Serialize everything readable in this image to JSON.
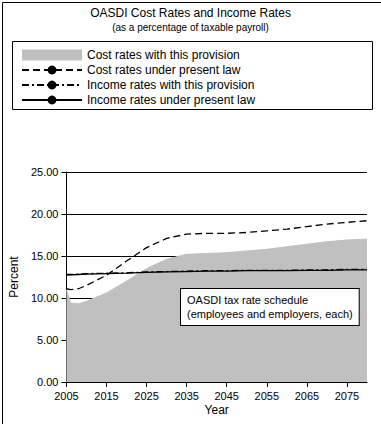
{
  "chart_data": {
    "type": "line",
    "title": "OASDI Cost Rates and Income Rates",
    "subtitle": "(as a percentage of taxable payroll)",
    "x_label": "Year",
    "y_label": "Percent",
    "annotation": [
      "OASDI tax rate schedule",
      "(employees and employers, each)"
    ],
    "x": [
      2005,
      2006,
      2008,
      2010,
      2015,
      2020,
      2025,
      2030,
      2035,
      2040,
      2045,
      2050,
      2055,
      2060,
      2065,
      2070,
      2075,
      2080
    ],
    "series": [
      {
        "name": "Cost rates with this provision",
        "type": "area",
        "color": "#c0c0c0",
        "line_style": "solid",
        "values": [
          11.0,
          9.4,
          9.3,
          9.6,
          10.6,
          12.0,
          13.5,
          14.6,
          15.2,
          15.3,
          15.4,
          15.6,
          15.8,
          16.1,
          16.4,
          16.7,
          16.9,
          17.0
        ]
      },
      {
        "name": "Cost rates under present law",
        "type": "line",
        "color": "#000000",
        "line_style": "dashed",
        "values": [
          11.1,
          11.0,
          11.1,
          11.5,
          12.7,
          14.4,
          16.0,
          17.1,
          17.6,
          17.7,
          17.7,
          17.8,
          18.0,
          18.2,
          18.5,
          18.8,
          19.0,
          19.2
        ]
      },
      {
        "name": "Income rates with this provision",
        "type": "line",
        "color": "#000000",
        "line_style": "dashdot",
        "values": [
          12.8,
          12.8,
          12.85,
          12.9,
          12.95,
          13.0,
          13.1,
          13.15,
          13.2,
          13.25,
          13.25,
          13.3,
          13.3,
          13.3,
          13.35,
          13.35,
          13.4,
          13.4
        ]
      },
      {
        "name": "Income rates under present law",
        "type": "line",
        "color": "#000000",
        "line_style": "solid",
        "values": [
          12.75,
          12.75,
          12.8,
          12.85,
          12.9,
          12.95,
          13.05,
          13.1,
          13.15,
          13.2,
          13.2,
          13.25,
          13.25,
          13.25,
          13.3,
          13.3,
          13.35,
          13.35
        ]
      }
    ],
    "xlim": [
      2005,
      2080
    ],
    "xticks": [
      2005,
      2015,
      2025,
      2035,
      2045,
      2055,
      2065,
      2075
    ],
    "ylim": [
      0,
      25
    ],
    "yticks": [
      {
        "value": 0,
        "label": "0.00"
      },
      {
        "value": 5,
        "label": "5.00"
      },
      {
        "value": 10,
        "label": "10.00"
      },
      {
        "value": 15,
        "label": "15.00"
      },
      {
        "value": 20,
        "label": "20.00"
      },
      {
        "value": 25,
        "label": "25.00"
      }
    ],
    "grid": true,
    "legend": "top"
  }
}
